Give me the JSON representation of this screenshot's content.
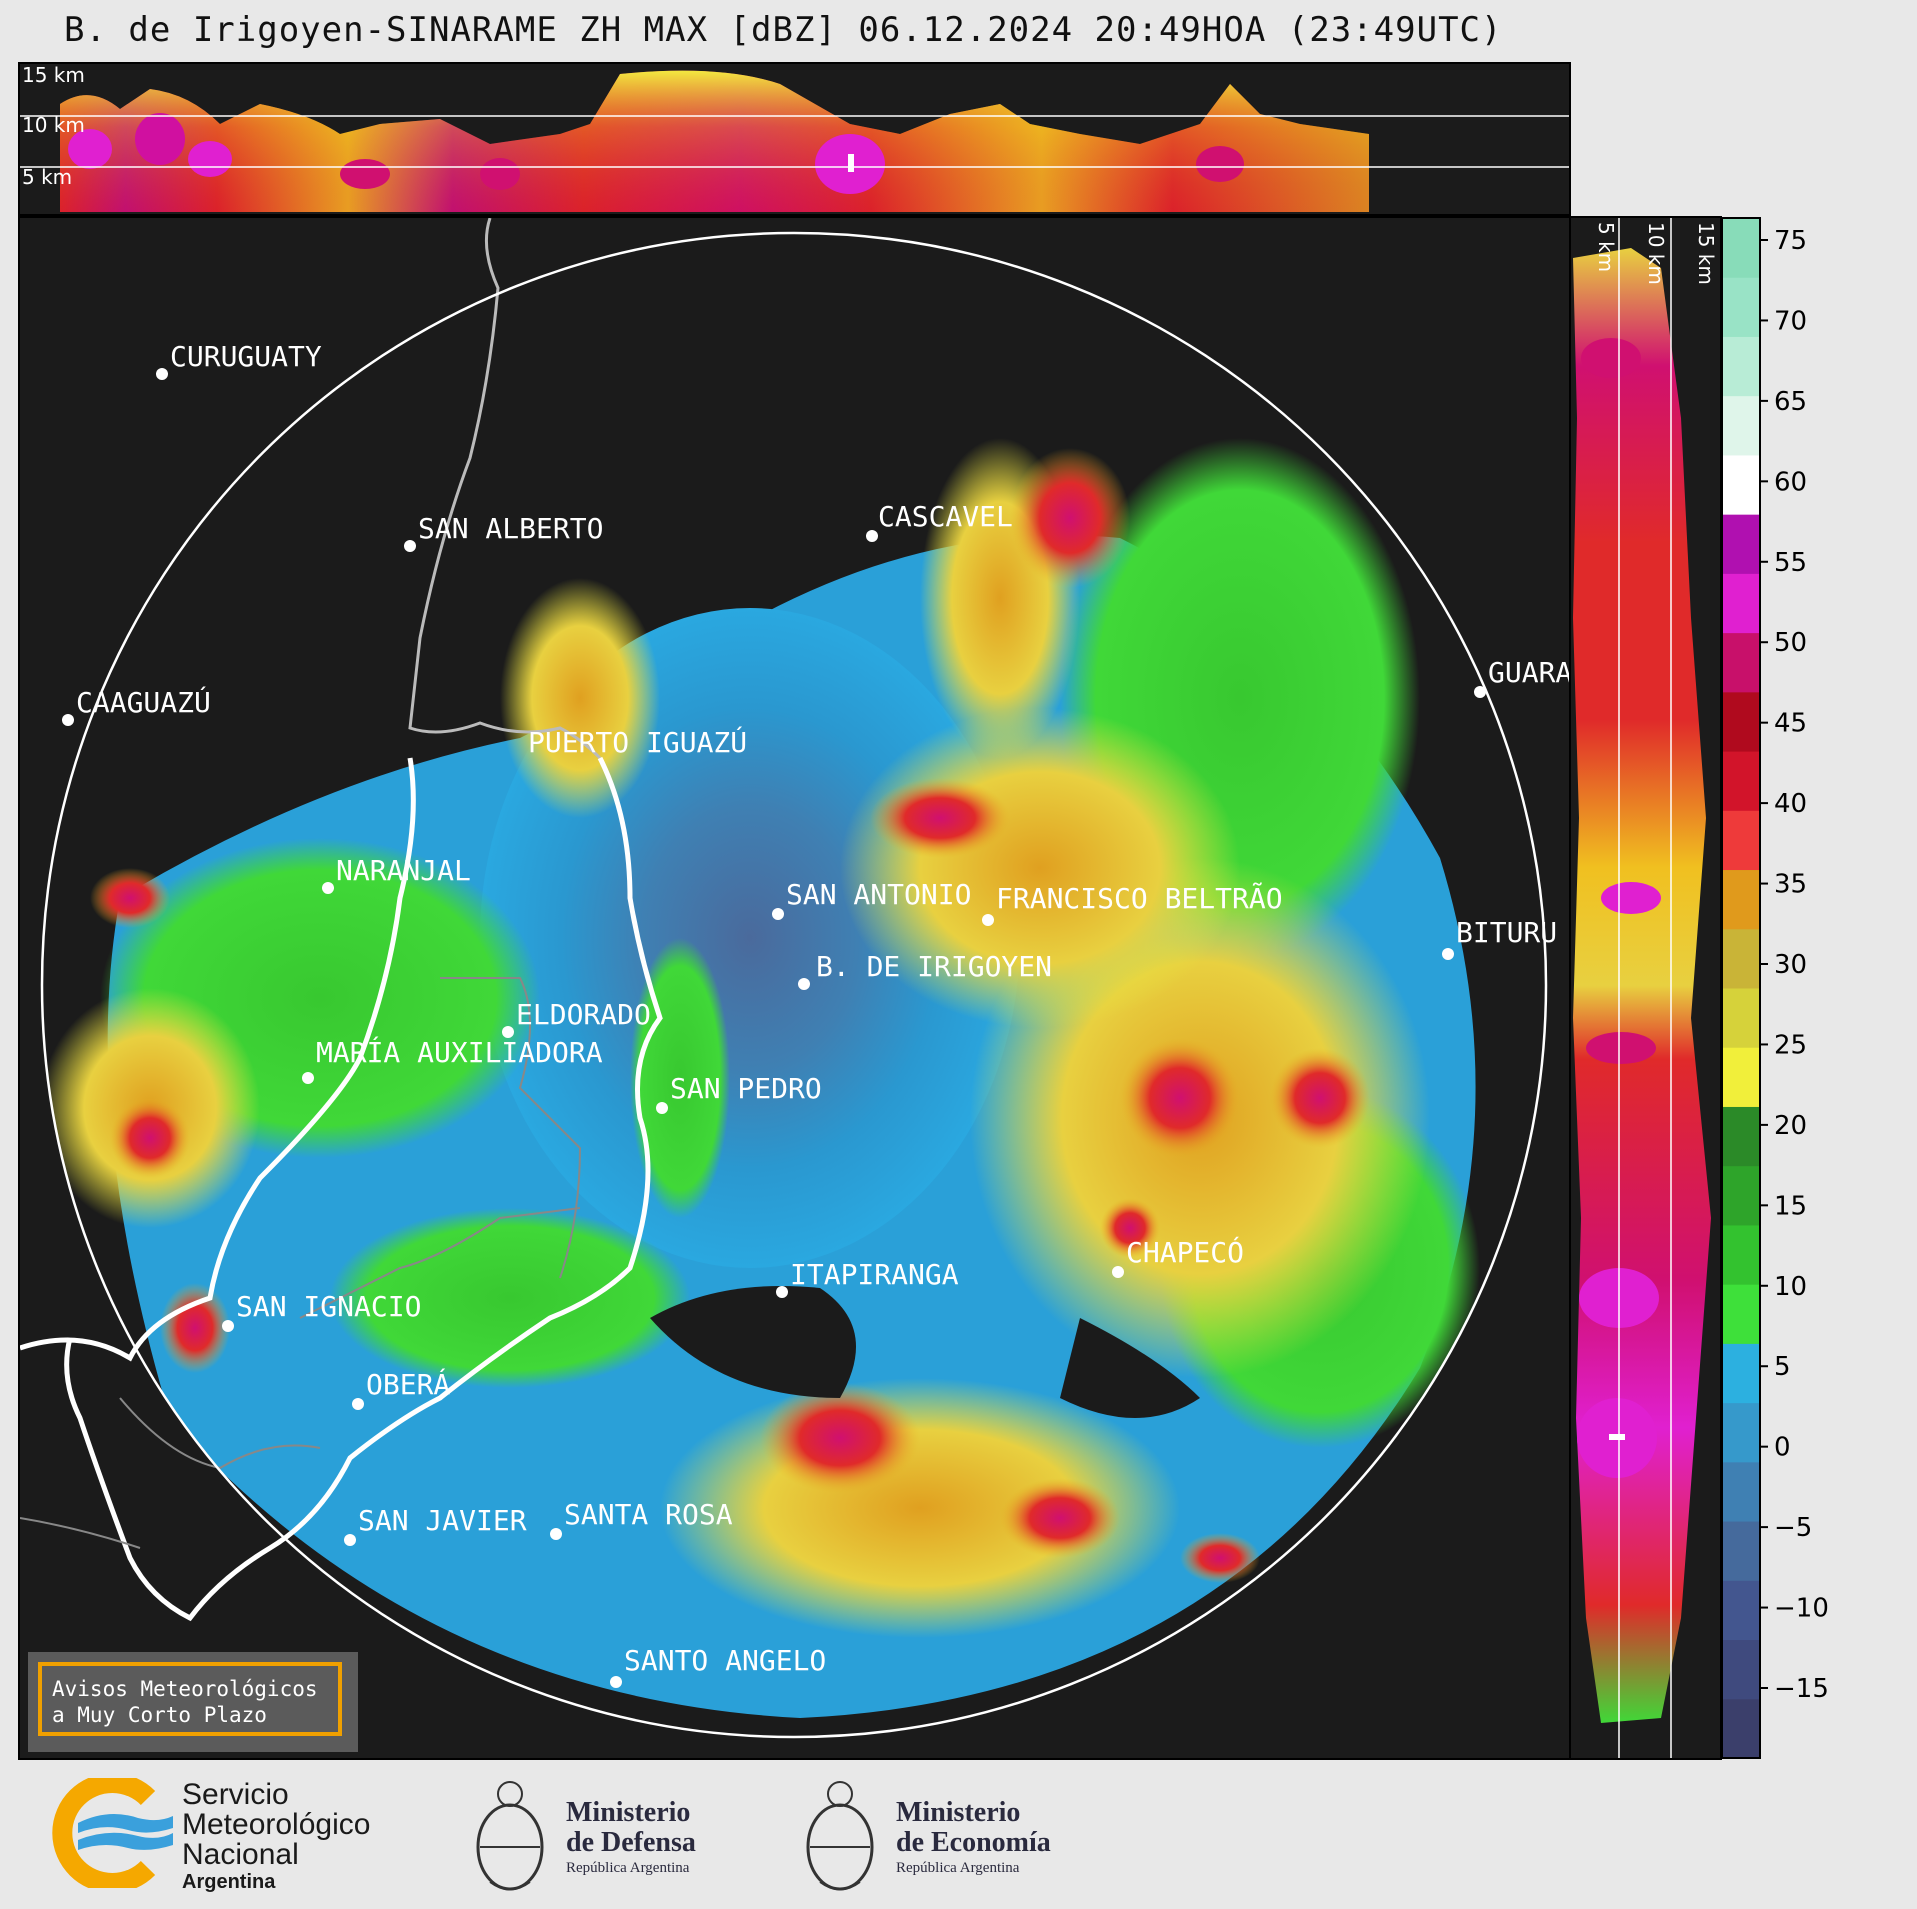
{
  "title": "B. de Irigoyen-SINARAME ZH MAX [dBZ] 06.12.2024 20:49HOA (23:49UTC)",
  "top_panel": {
    "km_labels": [
      "15 km",
      "10 km",
      "5 km"
    ]
  },
  "side_panel": {
    "km_labels": [
      "5 km",
      "10 km",
      "15 km"
    ]
  },
  "cities": [
    {
      "name": "CURUGUATY"
    },
    {
      "name": "SAN ALBERTO"
    },
    {
      "name": "CASCAVEL"
    },
    {
      "name": "GUARA"
    },
    {
      "name": "CAAGUAZÚ"
    },
    {
      "name": "PUERTO IGUAZÚ"
    },
    {
      "name": "NARANJAL"
    },
    {
      "name": "SAN ANTONIO"
    },
    {
      "name": "FRANCISCO BELTRÃO"
    },
    {
      "name": "BITURU"
    },
    {
      "name": "B. DE IRIGOYEN"
    },
    {
      "name": "ELDORADO"
    },
    {
      "name": "MARÍA AUXILIADORA"
    },
    {
      "name": "SAN PEDRO"
    },
    {
      "name": "CHAPECÓ"
    },
    {
      "name": "ITAPIRANGA"
    },
    {
      "name": "SAN IGNACIO"
    },
    {
      "name": "OBERÁ"
    },
    {
      "name": "SAN JAVIER"
    },
    {
      "name": "SANTA ROSA"
    },
    {
      "name": "SANTO ANGELO"
    }
  ],
  "colorbar": {
    "ticks": [
      "75",
      "70",
      "65",
      "60",
      "55",
      "50",
      "45",
      "40",
      "35",
      "30",
      "25",
      "20",
      "15",
      "10",
      "5",
      "0",
      "−5",
      "−10",
      "−15"
    ],
    "colors": [
      "#3b3f6b",
      "#3f4a7e",
      "#43568f",
      "#456a9c",
      "#3f80b3",
      "#3699cb",
      "#2cb0e0",
      "#3ee03a",
      "#33c22f",
      "#2ea42a",
      "#2b8a28",
      "#f1ef3a",
      "#d6d23a",
      "#c9b437",
      "#e09a1c",
      "#ee3a3a",
      "#d2142a",
      "#b00a1e",
      "#c8106a",
      "#e020d0",
      "#b010b0",
      "#ffffff",
      "#dff5ea",
      "#b8ecd6",
      "#99e3c6",
      "#88dcb9"
    ]
  },
  "warning": {
    "line1": "Avisos Meteorológicos",
    "line2": "a Muy Corto Plazo"
  },
  "footer": {
    "smn": {
      "line1": "Servicio",
      "line2": "Meteorológico",
      "line3": "Nacional",
      "line4": "Argentina"
    },
    "defensa": {
      "line1": "Ministerio",
      "line2": "de Defensa",
      "line3": "República Argentina"
    },
    "economia": {
      "line1": "Ministerio",
      "line2": "de Economía",
      "line3": "República Argentina"
    }
  }
}
